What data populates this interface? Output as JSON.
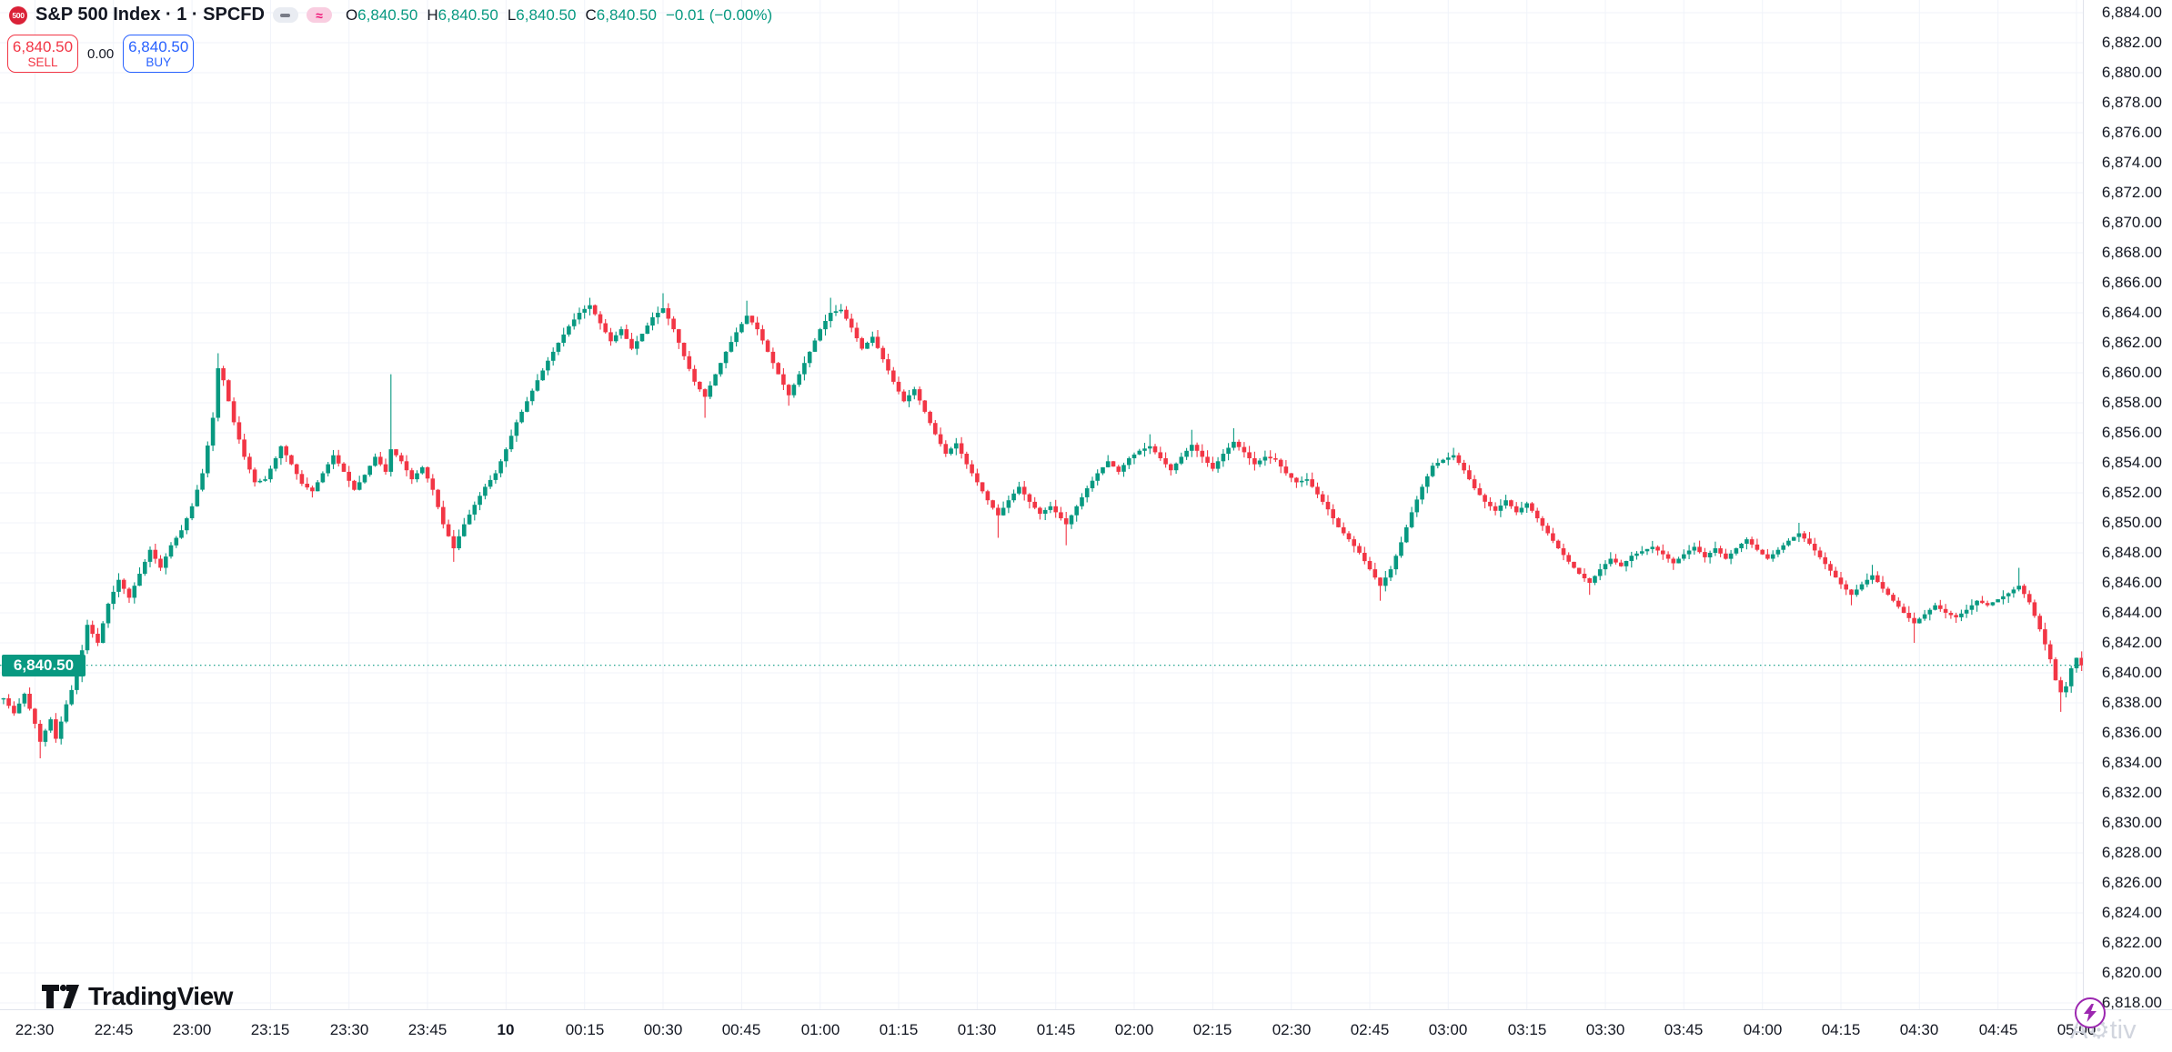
{
  "header": {
    "badge": "500",
    "title": "S&P 500 Index · 1 · SPCFD",
    "ohlc": {
      "items": [
        {
          "label": "O",
          "value": "6,840.50"
        },
        {
          "label": "H",
          "value": "6,840.50"
        },
        {
          "label": "L",
          "value": "6,840.50"
        },
        {
          "label": "C",
          "value": "6,840.50"
        }
      ],
      "change": "−0.01 (−0.00%)"
    },
    "status_icons": {
      "dash_pill": "–",
      "approx_pill": "≈"
    }
  },
  "trade_panel": {
    "sell_price": "6,840.50",
    "sell_label": "SELL",
    "spread": "0.00",
    "buy_price": "6,840.50",
    "buy_label": "BUY"
  },
  "last_price_tag": "6,840.50",
  "footer": {
    "logo_text": "TradingView"
  },
  "watermark": {
    "prefix": "A",
    "suffix": "tiv"
  },
  "chart_data": {
    "type": "candlestick",
    "symbol": "S&P 500 Index",
    "interval": "1",
    "exchange": "SPCFD",
    "ohlc_current": {
      "open": 6840.5,
      "high": 6840.5,
      "low": 6840.5,
      "close": 6840.5,
      "change": -0.01,
      "change_percent": 0.0
    },
    "last_close": 6840.5,
    "session_start": "22:24",
    "session_end": "05:01",
    "y_axis": {
      "min": 6817.6,
      "max": 6884.8,
      "tick_step": 2,
      "first_tick": 6818,
      "last_tick": 6884
    },
    "x_axis": {
      "labels": [
        "22:30",
        "22:45",
        "23:00",
        "23:15",
        "23:30",
        "23:45",
        "10",
        "00:15",
        "00:30",
        "00:45",
        "01:00",
        "01:15",
        "01:30",
        "01:45",
        "02:00",
        "02:15",
        "02:30",
        "02:45",
        "03:00",
        "03:15",
        "03:30",
        "03:45",
        "04:00",
        "04:15",
        "04:30",
        "04:45",
        "05:00"
      ],
      "bold_label": "10",
      "minutes_per_label": 15
    },
    "colors": {
      "up": "#089981",
      "down": "#f23645",
      "grid": "#f0f3fa",
      "last_price": "#089981",
      "axis_text": "#131722",
      "sell": "#f23645",
      "buy": "#2962ff",
      "badge": "#da2137",
      "bolt": "#9c27b0"
    },
    "price_keyframes": [
      [
        "22:24",
        6838.3
      ],
      [
        "22:26",
        6837.3
      ],
      [
        "22:28",
        6838.6
      ],
      [
        "22:30",
        6836.6
      ],
      [
        "22:31",
        6835.4
      ],
      [
        "22:33",
        6836.9
      ],
      [
        "22:34",
        6835.6
      ],
      [
        "22:36",
        6837.9
      ],
      [
        "22:38",
        6839.8
      ],
      [
        "22:40",
        6843.2
      ],
      [
        "22:42",
        6842.0
      ],
      [
        "22:44",
        6844.6
      ],
      [
        "22:46",
        6846.2
      ],
      [
        "22:48",
        6845.0
      ],
      [
        "22:50",
        6846.6
      ],
      [
        "22:52",
        6848.2
      ],
      [
        "22:54",
        6847.0
      ],
      [
        "22:56",
        6848.5
      ],
      [
        "22:58",
        6849.5
      ],
      [
        "23:00",
        6851.1
      ],
      [
        "23:02",
        6853.3
      ],
      [
        "23:04",
        6857.0
      ],
      [
        "23:05",
        6860.3
      ],
      [
        "23:06",
        6859.5
      ],
      [
        "23:08",
        6856.7
      ],
      [
        "23:10",
        6854.4
      ],
      [
        "23:12",
        6852.7
      ],
      [
        "23:14",
        6852.9
      ],
      [
        "23:16",
        6854.3
      ],
      [
        "23:17",
        6855.1
      ],
      [
        "23:19",
        6853.9
      ],
      [
        "23:21",
        6852.6
      ],
      [
        "23:23",
        6852.1
      ],
      [
        "23:25",
        6853.3
      ],
      [
        "23:27",
        6854.5
      ],
      [
        "23:29",
        6853.4
      ],
      [
        "23:31",
        6852.2
      ],
      [
        "23:33",
        6853.2
      ],
      [
        "23:35",
        6854.4
      ],
      [
        "23:37",
        6853.4
      ],
      [
        "23:38",
        6854.9
      ],
      [
        "23:40",
        6854.1
      ],
      [
        "23:42",
        6852.9
      ],
      [
        "23:44",
        6853.7
      ],
      [
        "23:46",
        6852.2
      ],
      [
        "23:48",
        6849.9
      ],
      [
        "23:50",
        6848.3
      ],
      [
        "23:52",
        6849.9
      ],
      [
        "23:54",
        6851.2
      ],
      [
        "23:56",
        6852.4
      ],
      [
        "23:58",
        6853.3
      ],
      [
        "00:00",
        6854.9
      ],
      [
        "00:02",
        6856.7
      ],
      [
        "00:04",
        6858.1
      ],
      [
        "00:06",
        6859.5
      ],
      [
        "00:08",
        6860.8
      ],
      [
        "00:10",
        6862.0
      ],
      [
        "00:12",
        6863.1
      ],
      [
        "00:14",
        6864.0
      ],
      [
        "00:16",
        6864.5
      ],
      [
        "00:18",
        6863.3
      ],
      [
        "00:20",
        6862.1
      ],
      [
        "00:22",
        6862.9
      ],
      [
        "00:24",
        6861.6
      ],
      [
        "00:26",
        6862.6
      ],
      [
        "00:28",
        6863.7
      ],
      [
        "00:30",
        6864.3
      ],
      [
        "00:32",
        6862.9
      ],
      [
        "00:34",
        6861.1
      ],
      [
        "00:36",
        6859.4
      ],
      [
        "00:38",
        6858.4
      ],
      [
        "00:40",
        6859.9
      ],
      [
        "00:42",
        6861.4
      ],
      [
        "00:44",
        6862.7
      ],
      [
        "00:46",
        6863.8
      ],
      [
        "00:48",
        6862.9
      ],
      [
        "00:50",
        6861.4
      ],
      [
        "00:52",
        6859.9
      ],
      [
        "00:54",
        6858.5
      ],
      [
        "00:56",
        6859.9
      ],
      [
        "00:58",
        6861.4
      ],
      [
        "01:00",
        6862.9
      ],
      [
        "01:02",
        6864.0
      ],
      [
        "01:04",
        6864.2
      ],
      [
        "01:06",
        6863.0
      ],
      [
        "01:08",
        6861.6
      ],
      [
        "01:10",
        6862.4
      ],
      [
        "01:12",
        6860.9
      ],
      [
        "01:14",
        6859.4
      ],
      [
        "01:16",
        6858.1
      ],
      [
        "01:18",
        6858.9
      ],
      [
        "01:20",
        6857.4
      ],
      [
        "01:22",
        6855.9
      ],
      [
        "01:24",
        6854.6
      ],
      [
        "01:26",
        6855.3
      ],
      [
        "01:28",
        6853.9
      ],
      [
        "01:30",
        6852.7
      ],
      [
        "01:32",
        6851.5
      ],
      [
        "01:34",
        6850.5
      ],
      [
        "01:36",
        6851.5
      ],
      [
        "01:38",
        6852.4
      ],
      [
        "01:40",
        6851.4
      ],
      [
        "01:42",
        6850.6
      ],
      [
        "01:44",
        6851.1
      ],
      [
        "01:47",
        6849.9
      ],
      [
        "01:49",
        6851.1
      ],
      [
        "01:51",
        6852.3
      ],
      [
        "01:53",
        6853.3
      ],
      [
        "01:55",
        6854.1
      ],
      [
        "01:57",
        6853.4
      ],
      [
        "01:59",
        6854.3
      ],
      [
        "02:01",
        6854.8
      ],
      [
        "02:03",
        6855.1
      ],
      [
        "02:05",
        6854.3
      ],
      [
        "02:07",
        6853.5
      ],
      [
        "02:09",
        6854.4
      ],
      [
        "02:11",
        6855.2
      ],
      [
        "02:13",
        6854.4
      ],
      [
        "02:15",
        6853.6
      ],
      [
        "02:17",
        6854.6
      ],
      [
        "02:19",
        6855.4
      ],
      [
        "02:21",
        6854.7
      ],
      [
        "02:23",
        6853.9
      ],
      [
        "02:25",
        6854.4
      ],
      [
        "02:27",
        6854.2
      ],
      [
        "02:29",
        6853.3
      ],
      [
        "02:31",
        6852.7
      ],
      [
        "02:33",
        6852.9
      ],
      [
        "02:35",
        6851.9
      ],
      [
        "02:37",
        6850.9
      ],
      [
        "02:39",
        6849.7
      ],
      [
        "02:41",
        6848.9
      ],
      [
        "02:43",
        6848.0
      ],
      [
        "02:45",
        6846.9
      ],
      [
        "02:47",
        6845.8
      ],
      [
        "02:49",
        6846.9
      ],
      [
        "02:51",
        6848.7
      ],
      [
        "02:53",
        6850.7
      ],
      [
        "02:55",
        6852.4
      ],
      [
        "02:57",
        6853.8
      ],
      [
        "02:59",
        6854.2
      ],
      [
        "03:01",
        6854.5
      ],
      [
        "03:03",
        6853.5
      ],
      [
        "03:05",
        6852.3
      ],
      [
        "03:07",
        6851.4
      ],
      [
        "03:09",
        6850.8
      ],
      [
        "03:11",
        6851.5
      ],
      [
        "03:13",
        6850.7
      ],
      [
        "03:15",
        6851.3
      ],
      [
        "03:17",
        6850.3
      ],
      [
        "03:19",
        6849.3
      ],
      [
        "03:21",
        6848.3
      ],
      [
        "03:23",
        6847.4
      ],
      [
        "03:25",
        6846.6
      ],
      [
        "03:27",
        6846.0
      ],
      [
        "03:29",
        6846.9
      ],
      [
        "03:31",
        6847.6
      ],
      [
        "03:33",
        6847.1
      ],
      [
        "03:35",
        6847.8
      ],
      [
        "03:37",
        6848.1
      ],
      [
        "03:39",
        6848.4
      ],
      [
        "03:41",
        6847.9
      ],
      [
        "03:43",
        6847.3
      ],
      [
        "03:45",
        6847.9
      ],
      [
        "03:47",
        6848.4
      ],
      [
        "03:49",
        6847.7
      ],
      [
        "03:51",
        6848.3
      ],
      [
        "03:53",
        6847.6
      ],
      [
        "03:55",
        6848.3
      ],
      [
        "03:57",
        6848.9
      ],
      [
        "03:59",
        6848.2
      ],
      [
        "04:01",
        6847.6
      ],
      [
        "04:03",
        6848.2
      ],
      [
        "04:05",
        6848.8
      ],
      [
        "04:07",
        6849.3
      ],
      [
        "04:09",
        6848.6
      ],
      [
        "04:11",
        6847.7
      ],
      [
        "04:13",
        6846.8
      ],
      [
        "04:15",
        6845.9
      ],
      [
        "04:17",
        6845.2
      ],
      [
        "04:19",
        6845.9
      ],
      [
        "04:21",
        6846.5
      ],
      [
        "04:23",
        6845.6
      ],
      [
        "04:25",
        6844.8
      ],
      [
        "04:27",
        6844.0
      ],
      [
        "04:29",
        6843.3
      ],
      [
        "04:31",
        6843.9
      ],
      [
        "04:33",
        6844.5
      ],
      [
        "04:35",
        6844.0
      ],
      [
        "04:37",
        6843.7
      ],
      [
        "04:39",
        6844.2
      ],
      [
        "04:41",
        6844.8
      ],
      [
        "04:43",
        6844.5
      ],
      [
        "04:45",
        6844.9
      ],
      [
        "04:47",
        6845.3
      ],
      [
        "04:49",
        6845.8
      ],
      [
        "04:51",
        6844.7
      ],
      [
        "04:53",
        6842.9
      ],
      [
        "04:55",
        6840.9
      ],
      [
        "04:56",
        6839.5
      ],
      [
        "04:57",
        6838.7
      ],
      [
        "04:58",
        6839.1
      ],
      [
        "04:59",
        6840.3
      ],
      [
        "05:00",
        6841.0
      ],
      [
        "05:01",
        6840.5
      ]
    ],
    "wick_extremes": {
      "22:31": {
        "low": 6834.3
      },
      "23:05": {
        "high": 6861.3
      },
      "23:38": {
        "high": 6859.9
      },
      "23:50": {
        "low": 6847.4
      },
      "00:16": {
        "high": 6865.0
      },
      "00:30": {
        "high": 6865.3
      },
      "00:38": {
        "low": 6857.0
      },
      "00:46": {
        "high": 6864.8
      },
      "00:54": {
        "low": 6857.8
      },
      "01:02": {
        "high": 6865.0
      },
      "01:34": {
        "low": 6849.0
      },
      "01:47": {
        "low": 6848.5
      },
      "02:03": {
        "high": 6855.9
      },
      "02:11": {
        "high": 6856.2
      },
      "02:19": {
        "high": 6856.3
      },
      "02:47": {
        "low": 6844.8
      },
      "03:01": {
        "high": 6855.0
      },
      "03:27": {
        "low": 6845.2
      },
      "04:07": {
        "high": 6850.0
      },
      "04:17": {
        "low": 6844.5
      },
      "04:21": {
        "high": 6847.2
      },
      "04:29": {
        "low": 6842.0
      },
      "04:49": {
        "high": 6847.0
      },
      "04:57": {
        "low": 6837.4
      }
    },
    "legend_position": "none",
    "grid": true
  }
}
